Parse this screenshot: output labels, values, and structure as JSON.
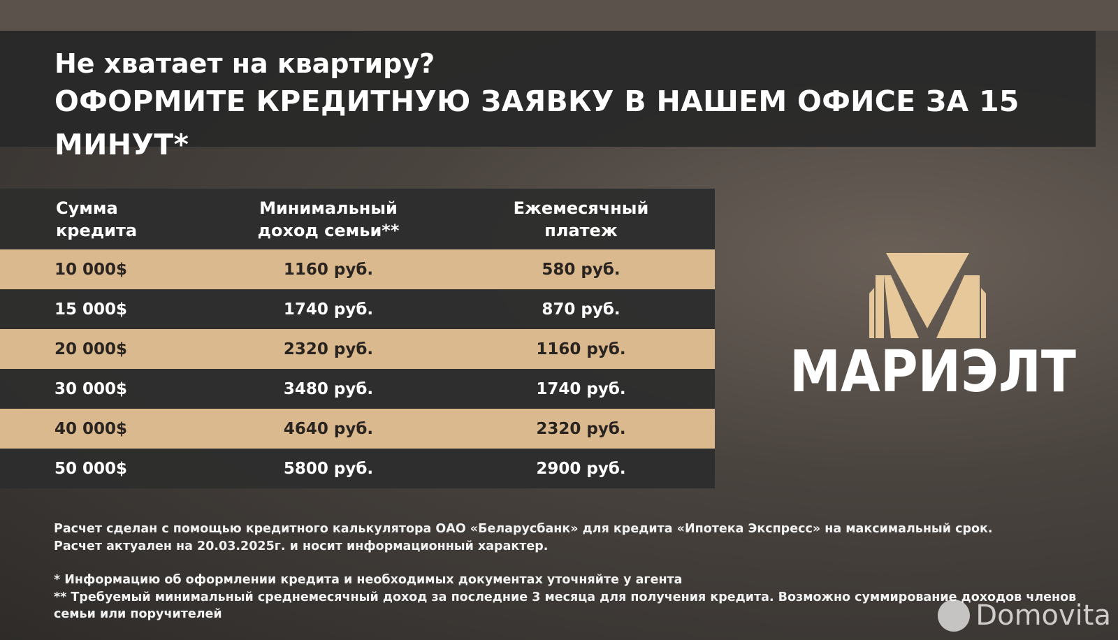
{
  "header": {
    "question": "Не хватает на квартиру?",
    "headline": "ОФОРМИТЕ КРЕДИТНУЮ ЗАЯВКУ В НАШЕМ ОФИСЕ ЗА 15 МИНУТ*"
  },
  "table": {
    "columns": [
      {
        "line1": "Сумма",
        "line2": "кредита"
      },
      {
        "line1": "Минимальный",
        "line2": "доход семьи**"
      },
      {
        "line1": "Ежемесячный",
        "line2": "платеж"
      }
    ],
    "rows": [
      [
        "10 000$",
        "1160 руб.",
        "580 руб."
      ],
      [
        "15 000$",
        "1740 руб.",
        "870 руб."
      ],
      [
        "20 000$",
        "2320 руб.",
        "1160 руб."
      ],
      [
        "30 000$",
        "3480 руб.",
        "1740 руб."
      ],
      [
        "40 000$",
        "4640 руб.",
        "2320 руб."
      ],
      [
        "50 000$",
        "5800 руб.",
        "2900 руб."
      ]
    ]
  },
  "logo": {
    "text": "МАРИЭЛТ",
    "color": "#e6c89a"
  },
  "notes": {
    "line1": "Расчет сделан с помощью кредитного калькулятора ОАО «Беларусбанк» для кредита «Ипотека Экспресс» на максимальный срок.",
    "line2": "Расчет актуален на 20.03.2025г. и носит информационный характер.",
    "footnote1": "* Информацию об оформлении кредита и необходимых документах уточняйте у агента",
    "footnote2": "** Требуемый минимальный среднемесячный доход за последние 3 месяца для получения кредита. Возможно суммирование доходов членов семьи или поручителей"
  },
  "watermark": {
    "text": "Domovita"
  },
  "colors": {
    "gold_row": "#dbb98e",
    "dark_row": "#2d2d2d"
  }
}
